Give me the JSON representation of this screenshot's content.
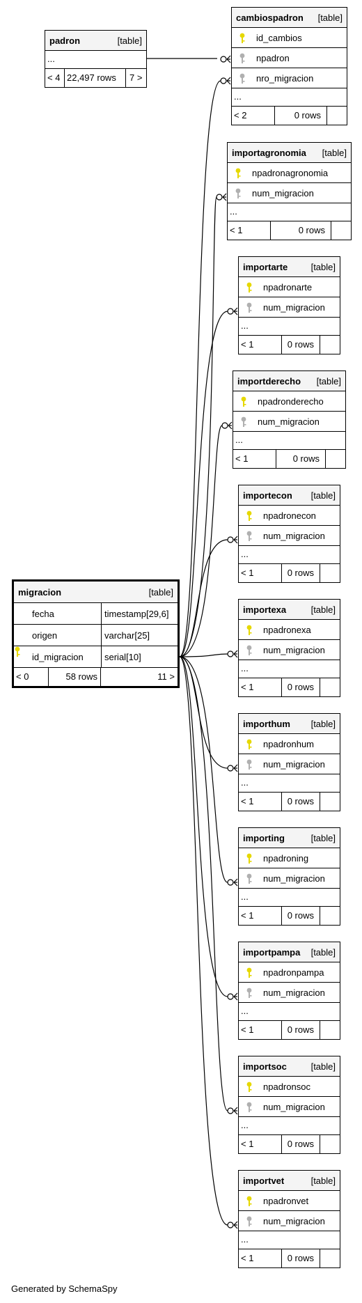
{
  "generated_by": "Generated by SchemaSpy",
  "padron": {
    "name": "padron",
    "type": "[table]",
    "more": "...",
    "parents": "< 4",
    "rows": "22,497 rows",
    "children": "7 >"
  },
  "migracion": {
    "name": "migracion",
    "type": "[table]",
    "columns": [
      {
        "name": "fecha",
        "type": "timestamp[29,6]",
        "key": "none"
      },
      {
        "name": "origen",
        "type": "varchar[25]",
        "key": "none"
      },
      {
        "name": "id_migracion",
        "type": "serial[10]",
        "key": "primary"
      }
    ],
    "parents": "< 0",
    "rows": "58 rows",
    "children": "11 >"
  },
  "tables": [
    {
      "name": "cambiospadron",
      "type": "[table]",
      "columns": [
        {
          "name": "id_cambios",
          "key": "primary"
        },
        {
          "name": "npadron",
          "key": "foreign"
        },
        {
          "name": "nro_migracion",
          "key": "foreign"
        }
      ],
      "more": "...",
      "parents": "< 2",
      "rows": "0 rows"
    },
    {
      "name": "importagronomia",
      "type": "[table]",
      "columns": [
        {
          "name": "npadronagronomia",
          "key": "primary"
        },
        {
          "name": "num_migracion",
          "key": "foreign"
        }
      ],
      "more": "...",
      "parents": "< 1",
      "rows": "0 rows"
    },
    {
      "name": "importarte",
      "type": "[table]",
      "columns": [
        {
          "name": "npadronarte",
          "key": "primary"
        },
        {
          "name": "num_migracion",
          "key": "foreign"
        }
      ],
      "more": "...",
      "parents": "< 1",
      "rows": "0 rows"
    },
    {
      "name": "importderecho",
      "type": "[table]",
      "columns": [
        {
          "name": "npadronderecho",
          "key": "primary"
        },
        {
          "name": "num_migracion",
          "key": "foreign"
        }
      ],
      "more": "...",
      "parents": "< 1",
      "rows": "0 rows"
    },
    {
      "name": "importecon",
      "type": "[table]",
      "columns": [
        {
          "name": "npadronecon",
          "key": "primary"
        },
        {
          "name": "num_migracion",
          "key": "foreign"
        }
      ],
      "more": "...",
      "parents": "< 1",
      "rows": "0 rows"
    },
    {
      "name": "importexa",
      "type": "[table]",
      "columns": [
        {
          "name": "npadronexa",
          "key": "primary"
        },
        {
          "name": "num_migracion",
          "key": "foreign"
        }
      ],
      "more": "...",
      "parents": "< 1",
      "rows": "0 rows"
    },
    {
      "name": "importhum",
      "type": "[table]",
      "columns": [
        {
          "name": "npadronhum",
          "key": "primary"
        },
        {
          "name": "num_migracion",
          "key": "foreign"
        }
      ],
      "more": "...",
      "parents": "< 1",
      "rows": "0 rows"
    },
    {
      "name": "importing",
      "type": "[table]",
      "columns": [
        {
          "name": "npadroning",
          "key": "primary"
        },
        {
          "name": "num_migracion",
          "key": "foreign"
        }
      ],
      "more": "...",
      "parents": "< 1",
      "rows": "0 rows"
    },
    {
      "name": "importpampa",
      "type": "[table]",
      "columns": [
        {
          "name": "npadronpampa",
          "key": "primary"
        },
        {
          "name": "num_migracion",
          "key": "foreign"
        }
      ],
      "more": "...",
      "parents": "< 1",
      "rows": "0 rows"
    },
    {
      "name": "importsoc",
      "type": "[table]",
      "columns": [
        {
          "name": "npadronsoc",
          "key": "primary"
        },
        {
          "name": "num_migracion",
          "key": "foreign"
        }
      ],
      "more": "...",
      "parents": "< 1",
      "rows": "0 rows"
    },
    {
      "name": "importvet",
      "type": "[table]",
      "columns": [
        {
          "name": "npadronvet",
          "key": "primary"
        },
        {
          "name": "num_migracion",
          "key": "foreign"
        }
      ],
      "more": "...",
      "parents": "< 1",
      "rows": "0 rows"
    }
  ],
  "colors": {
    "primary_key": "#e6d800",
    "foreign_key": "#b0b0b0",
    "header_bg": "#f4f4f4"
  }
}
